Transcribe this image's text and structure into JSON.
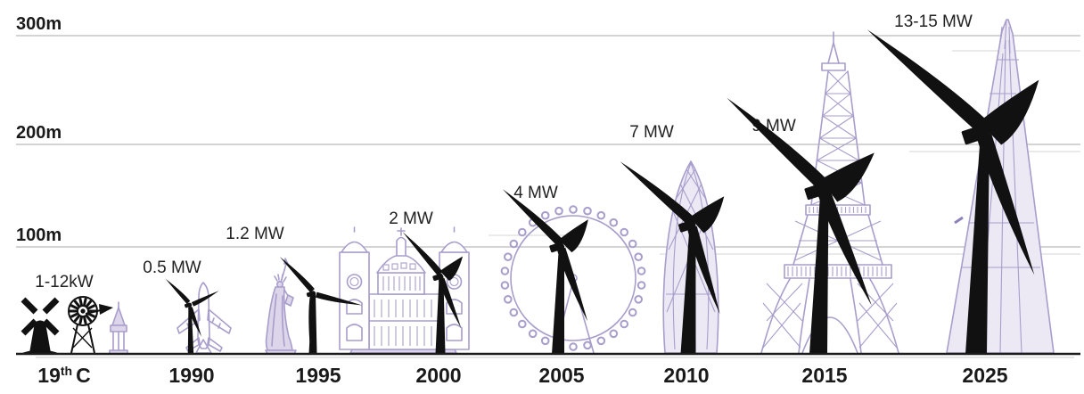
{
  "colors": {
    "background": "#ffffff",
    "turbine_black": "#111111",
    "landmark_stroke": "#a89dcb",
    "landmark_fill": "#ece9f5",
    "landmark_fill_dark": "#ddd5ea",
    "gridline": "#c6c6c6",
    "gridline_faint": "#dedede",
    "baseline": "#1c1c1c",
    "text": "#1a1a1a"
  },
  "x_axis": {
    "first_era_parts": {
      "base": "19",
      "sup": "th",
      "rest": "C"
    }
  },
  "chart_data": {
    "type": "pictorial-timeline",
    "x": [
      "19th C",
      "1990",
      "1995",
      "2000",
      "2005",
      "2010",
      "2015",
      "2025"
    ],
    "series": [
      {
        "name": "rated_power",
        "values": [
          "1-12kW",
          "0.5 MW",
          "1.2 MW",
          "2 MW",
          "4 MW",
          "7 MW",
          "9 MW",
          "13-15 MW"
        ]
      },
      {
        "name": "approx_tip_height_m",
        "values": [
          20,
          75,
          90,
          115,
          160,
          200,
          250,
          305
        ]
      },
      {
        "name": "comparison_landmark",
        "values": [
          "windmill, wind pump and church spire",
          "jumbo jet on tail",
          "Statue of Liberty",
          "St Paul's Cathedral",
          "London Eye",
          "The Gherkin",
          "Eiffel Tower",
          "The Shard"
        ]
      }
    ],
    "y_ticks": [
      "100m",
      "200m",
      "300m"
    ],
    "ylim_m": [
      0,
      330
    ],
    "grid": true,
    "legend": false
  }
}
